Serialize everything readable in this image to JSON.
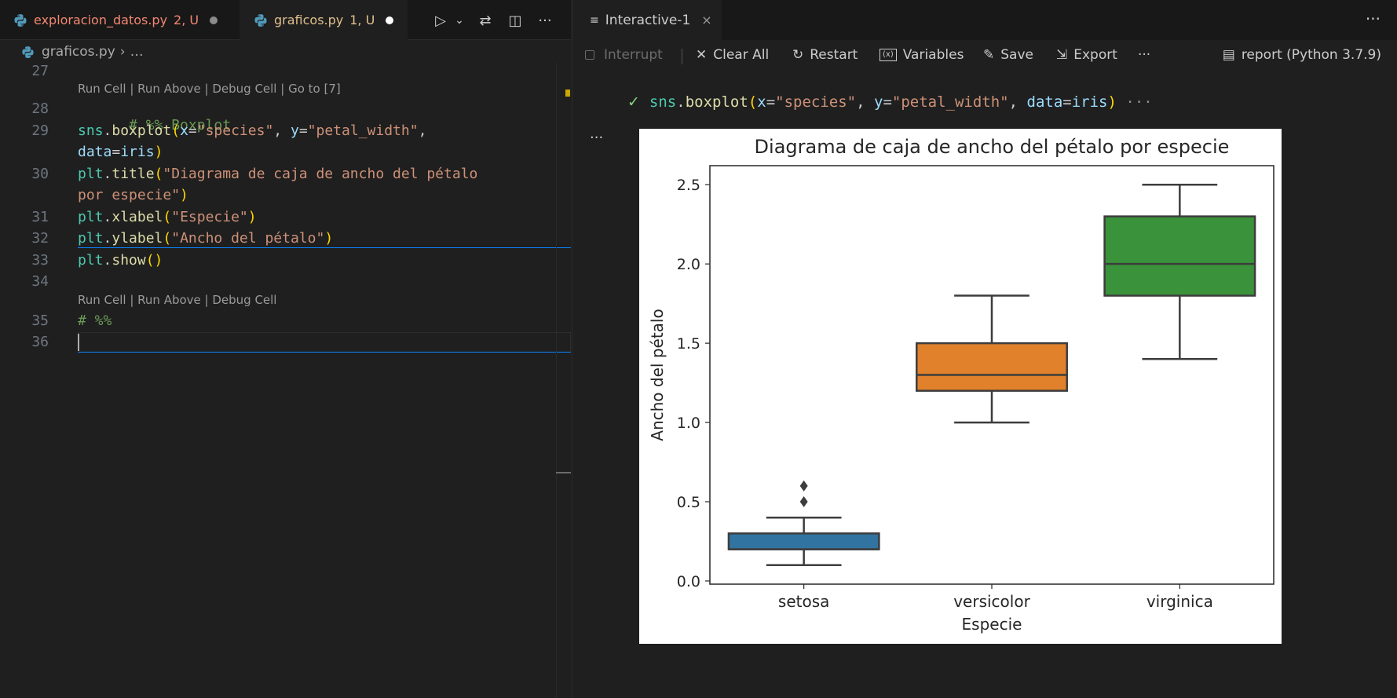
{
  "editor": {
    "tabs": [
      {
        "label": "exploracion_datos.py",
        "badge": "2, U",
        "icon": "python-icon",
        "color": "#f48771"
      },
      {
        "label": "graficos.py",
        "badge": "1, U",
        "icon": "python-icon",
        "color": "#e2c08d",
        "active": true
      }
    ],
    "toolbar": {
      "run_icon": "▷",
      "dropdown_icon": "⌄",
      "compare_icon": "⇄",
      "split_icon": "◫",
      "more_icon": "···"
    },
    "breadcrumb": {
      "file": "graficos.py",
      "separator": "›",
      "rest": "…"
    },
    "lines": [
      {
        "num": "27"
      },
      {
        "num": "28"
      },
      {
        "num": "29"
      },
      {
        "num": "30"
      },
      {
        "num": "31"
      },
      {
        "num": "32"
      },
      {
        "num": "33"
      },
      {
        "num": "34"
      },
      {
        "num": "35"
      },
      {
        "num": "36"
      }
    ],
    "codelens_1": "Run Cell | Run Above | Debug Cell | Go to [7]",
    "codelens_2": "Run Cell | Run Above | Debug Cell",
    "code": {
      "l28_comment": "# %% Boxplot",
      "l29_obj": "sns",
      "l29_dot": ".",
      "l29_fn": "boxplot",
      "l29_open": "(",
      "l29_p1": "x",
      "l29_eq1": "=",
      "l29_s1": "\"species\"",
      "l29_c1": ", ",
      "l29_p2": "y",
      "l29_eq2": "=",
      "l29_s2": "\"petal_width\"",
      "l29_c2": ",",
      "l29b_p3": "data",
      "l29b_eq": "=",
      "l29b_v": "iris",
      "l29b_close": ")",
      "l30_obj": "plt",
      "l30_dot": ".",
      "l30_fn": "title",
      "l30_open": "(",
      "l30_s": "\"Diagrama de caja de ancho del pétalo",
      "l30b_s": "por especie\"",
      "l30b_close": ")",
      "l31_obj": "plt",
      "l31_dot": ".",
      "l31_fn": "xlabel",
      "l31_open": "(",
      "l31_s": "\"Especie\"",
      "l31_close": ")",
      "l32_obj": "plt",
      "l32_dot": ".",
      "l32_fn": "ylabel",
      "l32_open": "(",
      "l32_s": "\"Ancho del pétalo\"",
      "l32_close": ")",
      "l33_obj": "plt",
      "l33_dot": ".",
      "l33_fn": "show",
      "l33_paren": "()",
      "l35_comment": "# %%"
    }
  },
  "interactive": {
    "tab_label": "Interactive-1",
    "tab_close": "×",
    "more": "···",
    "toolbar": {
      "interrupt": "Interrupt",
      "clear_all": "Clear All",
      "restart": "Restart",
      "variables": "Variables",
      "save": "Save",
      "export": "Export",
      "more": "···",
      "kernel": "report (Python 3.7.9)"
    },
    "cell": {
      "status_icon": "✓",
      "code_obj": "sns",
      "code_dot": ".",
      "code_fn": "boxplot",
      "code_open": "(",
      "code_p1": "x",
      "code_eq1": "=",
      "code_s1": "\"species\"",
      "code_c1": ", ",
      "code_p2": "y",
      "code_eq2": "=",
      "code_s2": "\"petal_width\"",
      "code_c2": ", ",
      "code_p3": "data",
      "code_eq3": "=",
      "code_v3": "iris",
      "code_close": ")",
      "ellipsis": " ···",
      "output_more": "···"
    }
  },
  "chart_data": {
    "type": "box",
    "title": "Diagrama de caja de ancho del pétalo por especie",
    "xlabel": "Especie",
    "ylabel": "Ancho del pétalo",
    "categories": [
      "setosa",
      "versicolor",
      "virginica"
    ],
    "ylim": [
      -0.02,
      2.62
    ],
    "yticks": [
      0.0,
      0.5,
      1.0,
      1.5,
      2.0,
      2.5
    ],
    "ytick_labels": [
      "0.0",
      "0.5",
      "1.0",
      "1.5",
      "2.0",
      "2.5"
    ],
    "grid": false,
    "series": [
      {
        "category": "setosa",
        "whisker_low": 0.1,
        "q1": 0.2,
        "median": 0.2,
        "q3": 0.3,
        "whisker_high": 0.4,
        "outliers": [
          0.5,
          0.6
        ],
        "color": "#3274a1"
      },
      {
        "category": "versicolor",
        "whisker_low": 1.0,
        "q1": 1.2,
        "median": 1.3,
        "q3": 1.5,
        "whisker_high": 1.8,
        "outliers": [],
        "color": "#e1812c"
      },
      {
        "category": "virginica",
        "whisker_low": 1.4,
        "q1": 1.8,
        "median": 2.0,
        "q3": 2.3,
        "whisker_high": 2.5,
        "outliers": [],
        "color": "#3a923a"
      }
    ]
  }
}
